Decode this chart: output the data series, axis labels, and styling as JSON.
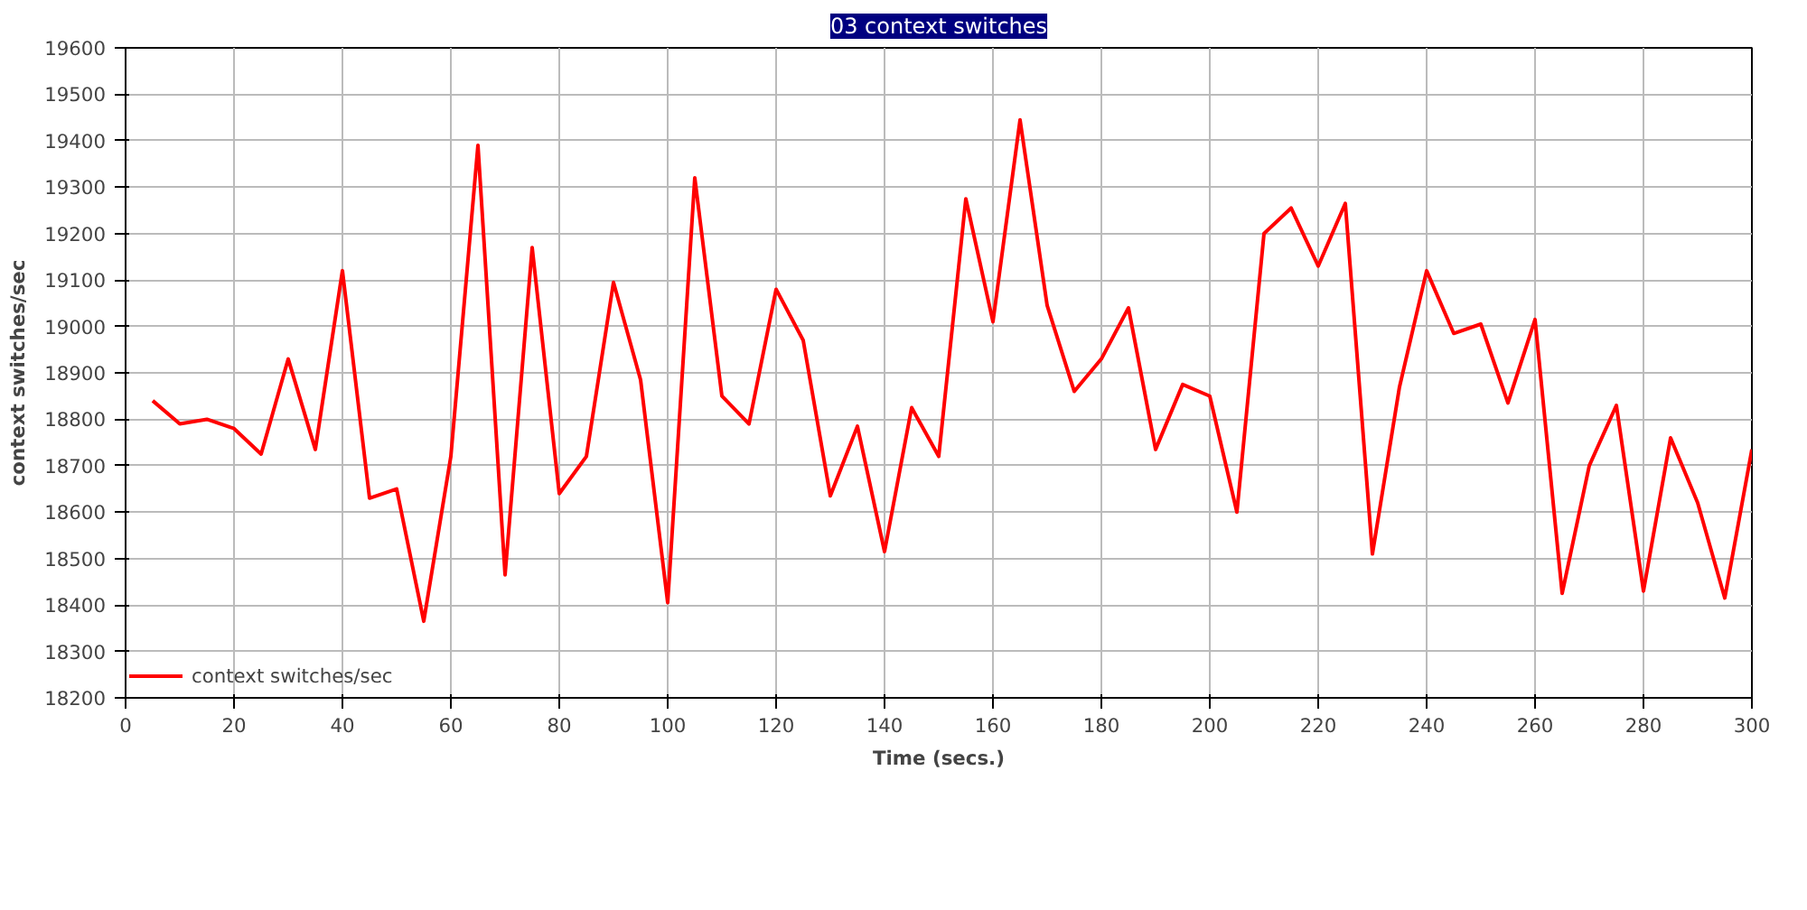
{
  "chart_data": {
    "type": "line",
    "title": "03 context switches",
    "xlabel": "Time (secs.)",
    "ylabel": "context switches/sec",
    "x": [
      5,
      10,
      15,
      20,
      25,
      30,
      35,
      40,
      45,
      50,
      55,
      60,
      65,
      70,
      75,
      80,
      85,
      90,
      95,
      100,
      105,
      110,
      115,
      120,
      125,
      130,
      135,
      140,
      145,
      150,
      155,
      160,
      165,
      170,
      175,
      180,
      185,
      190,
      195,
      200,
      205,
      210,
      215,
      220,
      225,
      230,
      235,
      240,
      245,
      250,
      255,
      260,
      265,
      270,
      275,
      280,
      285,
      290,
      295,
      300
    ],
    "series": [
      {
        "name": "context switches/sec",
        "color": "#ff0000",
        "values": [
          18840,
          18790,
          18800,
          18780,
          18725,
          18930,
          18735,
          19120,
          18630,
          18650,
          18365,
          18720,
          19390,
          18465,
          19170,
          18640,
          18720,
          19095,
          18885,
          18405,
          19320,
          18850,
          18790,
          19080,
          18970,
          18635,
          18785,
          18515,
          18825,
          18720,
          19275,
          19010,
          19445,
          19045,
          18860,
          18930,
          19040,
          18735,
          18875,
          18850,
          18600,
          19200,
          19255,
          19130,
          19265,
          18510,
          18870,
          19120,
          18985,
          19005,
          18835,
          19015,
          18425,
          18700,
          18830,
          18430,
          18760,
          18620,
          18415,
          18735
        ]
      }
    ],
    "xlim": [
      0,
      300
    ],
    "xticks": [
      0,
      20,
      40,
      60,
      80,
      100,
      120,
      140,
      160,
      180,
      200,
      220,
      240,
      260,
      280,
      300
    ],
    "ylim": [
      18200,
      19600
    ],
    "yticks": [
      18200,
      18300,
      18400,
      18500,
      18600,
      18700,
      18800,
      18900,
      19000,
      19100,
      19200,
      19300,
      19400,
      19500,
      19600
    ],
    "grid": true,
    "legend": "bottom left",
    "marker": "none",
    "line_style": "solid"
  }
}
